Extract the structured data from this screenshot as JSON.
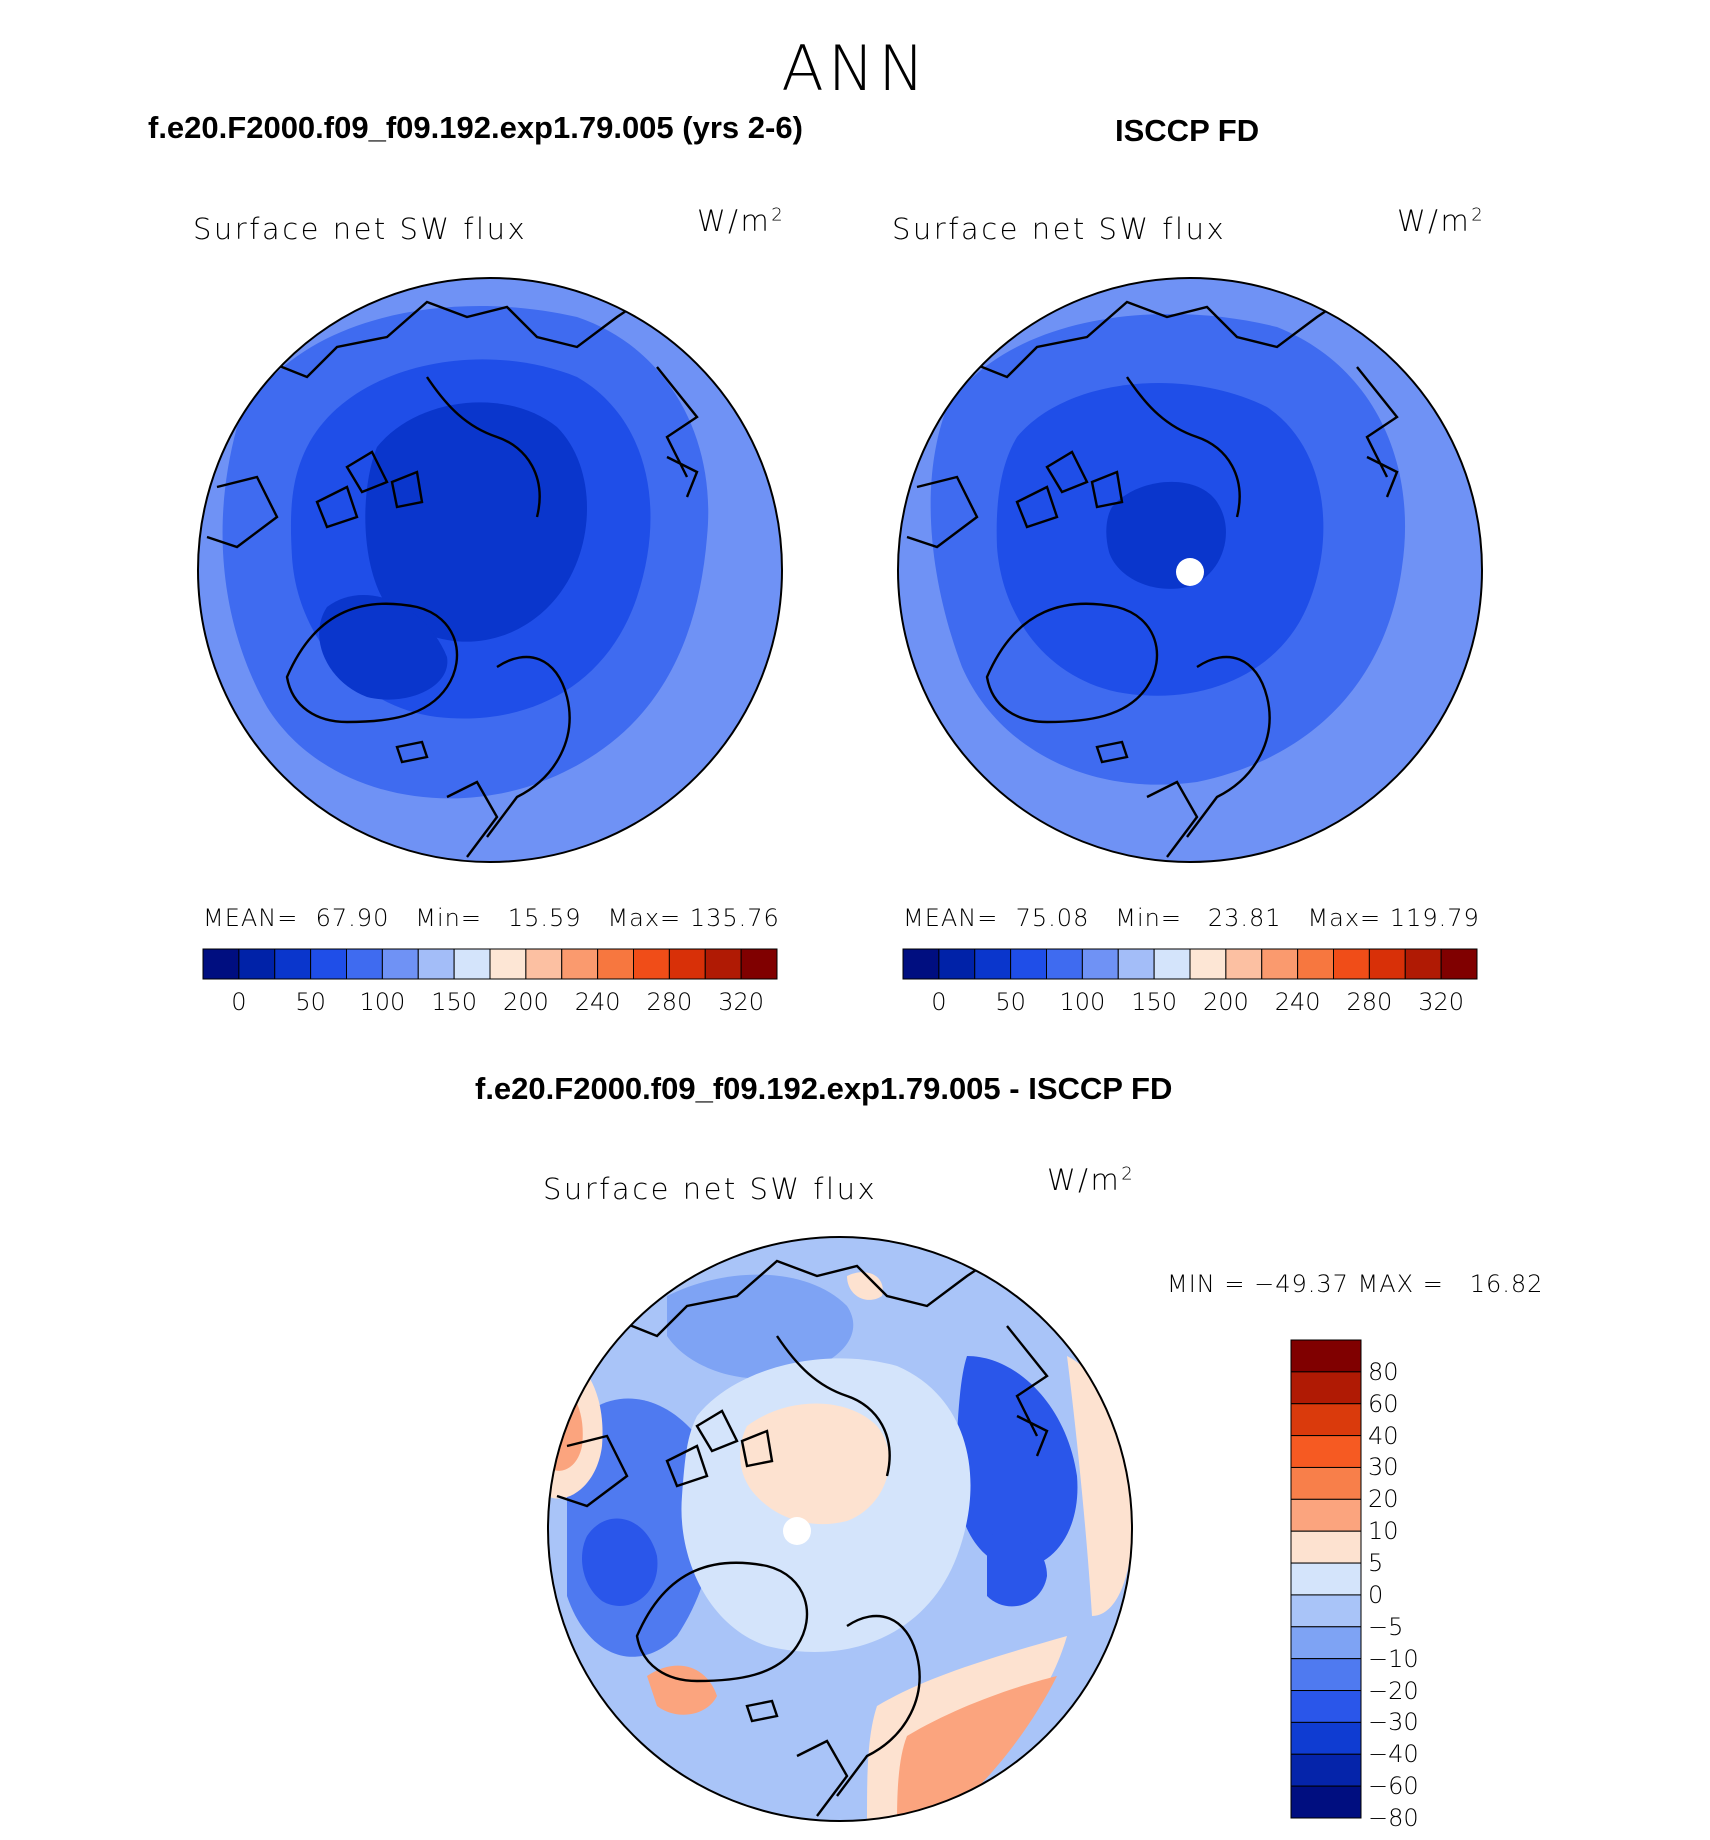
{
  "season": "ANN",
  "panels": [
    {
      "case_title": "f.e20.F2000.f09_f09.192.exp1.79.005 (yrs 2-6)",
      "variable": "Surface net SW flux",
      "units": "W/m",
      "units_exp": "2",
      "stats": {
        "mean_label": "MEAN=",
        "mean": "67.90",
        "min_label": "Min=",
        "min": "15.59",
        "max_label": "Max=",
        "max": "135.76"
      }
    },
    {
      "case_title": "ISCCP FD",
      "variable": "Surface net SW flux",
      "units": "W/m",
      "units_exp": "2",
      "stats": {
        "mean_label": "MEAN=",
        "mean": "75.08",
        "min_label": "Min=",
        "min": "23.81",
        "max_label": "Max=",
        "max": "119.79"
      }
    }
  ],
  "abs_colorbar": {
    "colors": [
      "#000e80",
      "#0022a8",
      "#0a36cc",
      "#1f4ee8",
      "#3f6bf0",
      "#6f92f5",
      "#a3bdf8",
      "#d4e4fb",
      "#fde6d5",
      "#fcc0a2",
      "#fa9a6e",
      "#f7773f",
      "#f04d18",
      "#d83008",
      "#b01a04",
      "#800000"
    ],
    "labels": [
      "0",
      "50",
      "100",
      "150",
      "200",
      "240",
      "280",
      "320"
    ]
  },
  "diff": {
    "title": "f.e20.F2000.f09_f09.192.exp1.79.005 - ISCCP FD",
    "variable": "Surface net SW flux",
    "units": "W/m",
    "units_exp": "2",
    "minmax": "MIN = −49.37 MAX =   16.82",
    "colors": [
      "#800000",
      "#b01a04",
      "#da3a0c",
      "#f65a22",
      "#f87f4a",
      "#fba47e",
      "#fde2d0",
      "#d4e4fb",
      "#a9c4f8",
      "#7ea3f4",
      "#4f7af0",
      "#2a56ea",
      "#0f3cd2",
      "#0524aa",
      "#000e80"
    ],
    "labels": [
      "80",
      "60",
      "40",
      "30",
      "20",
      "10",
      "5",
      "0",
      "−5",
      "−10",
      "−20",
      "−30",
      "−40",
      "−60",
      "−80"
    ]
  },
  "map_fills": {
    "model": {
      "outer": "#6f92f5",
      "mid": "#3f6bf0",
      "inner": "#1f4ee8",
      "core": "#0a36cc"
    },
    "obs": {
      "outer": "#6f92f5",
      "mid": "#3f6bf0",
      "inner": "#1f4ee8",
      "core": "#0a36cc"
    },
    "diff": {
      "base": "#a9c4f8",
      "light": "#d4e4fb",
      "pos": "#fde2d0",
      "pos2": "#fba47e",
      "neg": "#4f7af0",
      "neg2": "#2a56ea"
    }
  }
}
